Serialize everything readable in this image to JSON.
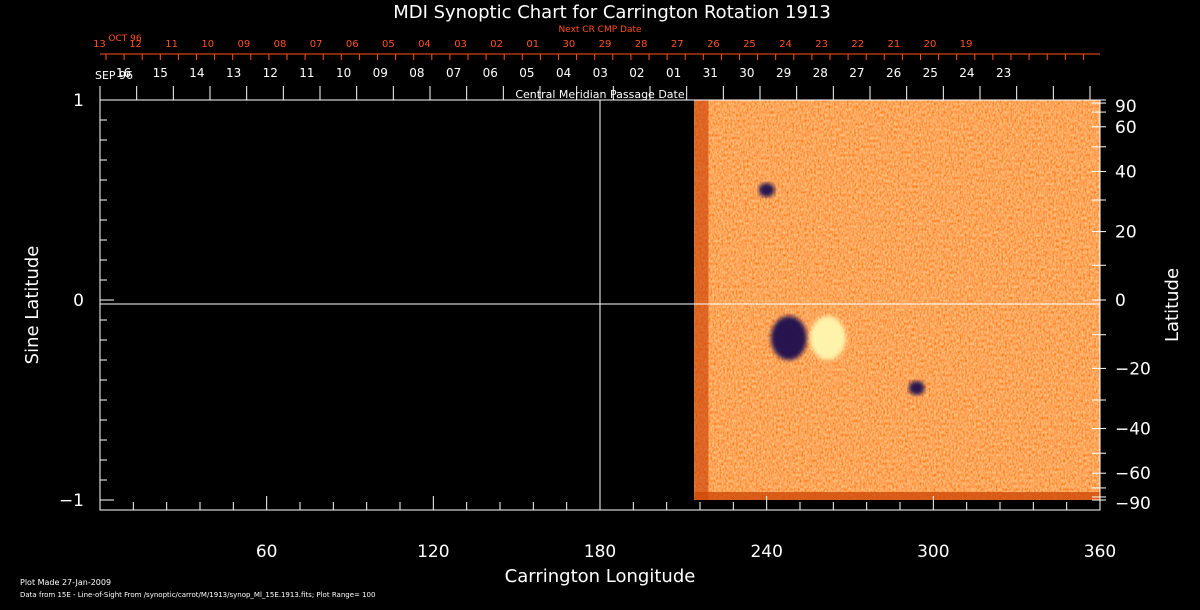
{
  "chart_data": {
    "type": "heatmap",
    "title": "MDI Synoptic Chart for Carrington Rotation 1913",
    "xlabel": "Carrington Longitude",
    "ylabel_left": "Sine Latitude",
    "ylabel_right": "Latitude",
    "xlim": [
      0,
      360
    ],
    "ylim": [
      -1,
      1
    ],
    "x_ticks": [
      60,
      120,
      180,
      240,
      300,
      360
    ],
    "y_ticks_left": [
      "1",
      "0",
      "−1"
    ],
    "y_ticks_left_values": [
      1,
      0,
      -1
    ],
    "y_ticks_right": [
      "90",
      "60",
      "40",
      "20",
      "0",
      "−20",
      "−40",
      "−60",
      "−90"
    ],
    "y_ticks_right_values": [
      90,
      60,
      40,
      20,
      0,
      -20,
      -40,
      -60,
      -90
    ],
    "data_start_longitude": 214,
    "data_end_longitude": 360,
    "plot_range": 100,
    "colormap": {
      "negative": "#1a1050",
      "background": "#ff5a0a",
      "positive": "#fff8b0"
    },
    "features": [
      {
        "name": "negative-polarity-region",
        "lon": 248,
        "sinlat": -0.19,
        "polarity": -1
      },
      {
        "name": "positive-polarity-region",
        "lon": 262,
        "sinlat": -0.19,
        "polarity": 1
      },
      {
        "name": "small-bipole",
        "lon": 294,
        "sinlat": -0.44,
        "polarity": -1
      },
      {
        "name": "northern-negative-patch",
        "lon": 240,
        "sinlat": 0.55,
        "polarity": -1
      }
    ],
    "top_axis": {
      "label": "Central Meridian Passage Date",
      "month_label": "SEP 96",
      "dates": [
        "16",
        "15",
        "14",
        "13",
        "12",
        "11",
        "10",
        "09",
        "08",
        "07",
        "06",
        "05",
        "04",
        "03",
        "02",
        "01",
        "31",
        "30",
        "29",
        "28",
        "27",
        "26",
        "25",
        "24",
        "23"
      ],
      "date_positions": [
        8.5,
        21.7,
        34.9,
        48.1,
        61.3,
        74.5,
        87.7,
        100.9,
        114.1,
        127.3,
        140.5,
        153.7,
        166.9,
        180.1,
        193.3,
        206.5,
        219.7,
        232.9,
        246.1,
        259.3,
        272.5,
        285.7,
        298.9,
        312.1,
        325.3
      ]
    },
    "next_cr_axis": {
      "label": "Next CR CMP Date",
      "month_label": "OCT 96",
      "dates": [
        "13",
        "12",
        "11",
        "10",
        "09",
        "08",
        "07",
        "06",
        "05",
        "04",
        "03",
        "02",
        "01",
        "30",
        "29",
        "28",
        "27",
        "26",
        "25",
        "24",
        "23",
        "22",
        "21",
        "20",
        "19"
      ],
      "date_positions": [
        -29,
        -16,
        -3,
        10,
        23,
        36,
        49,
        62,
        75,
        88,
        101,
        114,
        127,
        140,
        153,
        166,
        179,
        192,
        205,
        218,
        231,
        244,
        257,
        270,
        283
      ],
      "color": "#ff5020"
    },
    "footer": {
      "plot_made": "Plot Made 27-Jan-2009",
      "source": "Data from 15E - Line-of-Sight From /synoptic/carrot/M/1913/synop_Ml_15E.1913.fits; Plot Range=  100"
    }
  }
}
